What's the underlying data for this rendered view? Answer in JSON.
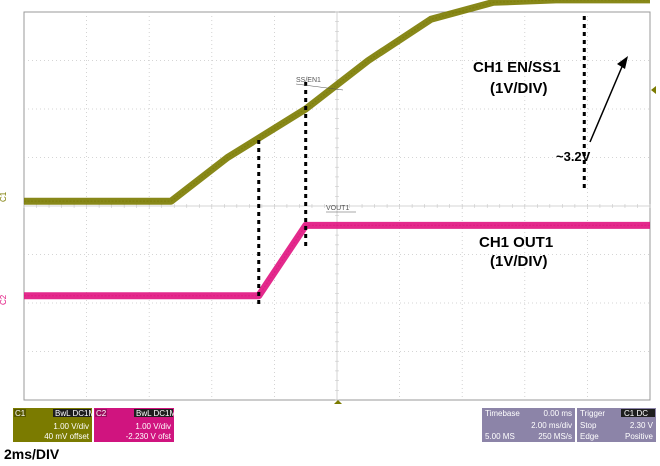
{
  "chart_data": {
    "type": "line",
    "title": "",
    "xlabel": "",
    "ylabel": "",
    "xlim": [
      -10,
      10
    ],
    "ylim": [
      -4,
      4
    ],
    "grid": true,
    "series": [
      {
        "name": "SS/EN1",
        "label": "SS/EN1",
        "channel_marker": "C1",
        "color": "#7b7b00",
        "x": [
          -10,
          -5.3,
          -3.5,
          -1,
          1,
          3,
          5,
          7,
          10
        ],
        "y": [
          0.1,
          0.1,
          1.0,
          2.0,
          3.0,
          3.85,
          4.2,
          4.25,
          4.25
        ]
      },
      {
        "name": "VOUT1",
        "label": "VOUT1",
        "channel_marker": "C2",
        "color": "#e0137f",
        "x": [
          -10,
          -2.5,
          -1.0,
          10
        ],
        "y": [
          -1.85,
          -1.85,
          -0.4,
          -0.4
        ]
      }
    ],
    "markers": {
      "vline1_x": -2.5,
      "vline2_x": -1.0,
      "vline3_x": 7.9
    },
    "annotations": [
      {
        "text": "CH1 EN/SS1",
        "text2": "(1V/DIV)"
      },
      {
        "text": "CH1 OUT1",
        "text2": "(1V/DIV)"
      },
      {
        "text": "~3.2V"
      }
    ]
  },
  "panels": {
    "c1": {
      "tag": "C1",
      "badge": "BwL DC1M",
      "line1": "1.00 V/div",
      "line2": "40 mV offset"
    },
    "c2": {
      "tag": "C2",
      "badge": "BwL DC1M",
      "line1": "1.00 V/div",
      "line2": "-2.230 V ofst"
    },
    "timebase": {
      "r1a": "Timebase",
      "r1b": "0.00 ms",
      "r2": "2.00 ms/div",
      "r3a": "5.00 MS",
      "r3b": "250 MS/s"
    },
    "trigger": {
      "r1a": "Trigger",
      "r1b": "C1 DC",
      "r2a": "Stop",
      "r2b": "2.30 V",
      "r3a": "Edge",
      "r3b": "Positive"
    }
  },
  "footer": "2ms/DIV",
  "colors": {
    "ch1": "#7b7b00",
    "ch2": "#e0137f",
    "grid": "#c8c8c8",
    "panel1": "#7b7b00",
    "panel2": "#d0147f",
    "panel3": "#8c84a8"
  }
}
